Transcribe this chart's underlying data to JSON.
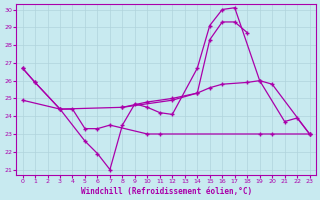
{
  "title": "Windchill (Refroidissement éolien,°C)",
  "bg_color": "#c8eaf0",
  "grid_color": "#b0d4dc",
  "line_color": "#aa00aa",
  "xlim_min": -0.5,
  "xlim_max": 23.5,
  "ylim_min": 20.7,
  "ylim_max": 30.3,
  "xticks": [
    0,
    1,
    2,
    3,
    4,
    5,
    6,
    7,
    8,
    9,
    10,
    11,
    12,
    13,
    14,
    15,
    16,
    17,
    18,
    19,
    20,
    21,
    22,
    23
  ],
  "yticks": [
    21,
    22,
    23,
    24,
    25,
    26,
    27,
    28,
    29,
    30
  ],
  "s1_x": [
    0,
    1,
    3,
    5,
    6,
    7,
    8,
    9,
    10,
    11,
    12,
    14,
    15,
    16,
    17,
    19,
    21,
    22,
    23
  ],
  "s1_y": [
    26.7,
    25.9,
    24.4,
    22.6,
    21.9,
    21.0,
    23.5,
    24.7,
    24.5,
    24.2,
    24.1,
    26.7,
    29.1,
    30.0,
    30.1,
    26.0,
    23.7,
    23.9,
    23.0
  ],
  "s2_x": [
    0,
    1,
    3,
    4,
    5,
    6,
    7,
    10,
    11,
    19,
    20,
    23
  ],
  "s2_y": [
    26.7,
    25.9,
    24.4,
    24.4,
    23.3,
    23.3,
    23.5,
    23.0,
    23.0,
    23.0,
    23.0,
    23.0
  ],
  "s3_x": [
    0,
    3,
    8,
    10,
    12,
    14,
    15,
    16,
    18,
    19,
    20,
    23
  ],
  "s3_y": [
    24.9,
    24.4,
    24.5,
    24.8,
    25.0,
    25.3,
    25.6,
    25.8,
    25.9,
    26.0,
    25.8,
    23.0
  ],
  "s4_x": [
    8,
    12,
    14,
    15,
    16,
    17,
    18
  ],
  "s4_y": [
    24.5,
    24.9,
    25.3,
    28.3,
    29.3,
    29.3,
    28.7
  ]
}
